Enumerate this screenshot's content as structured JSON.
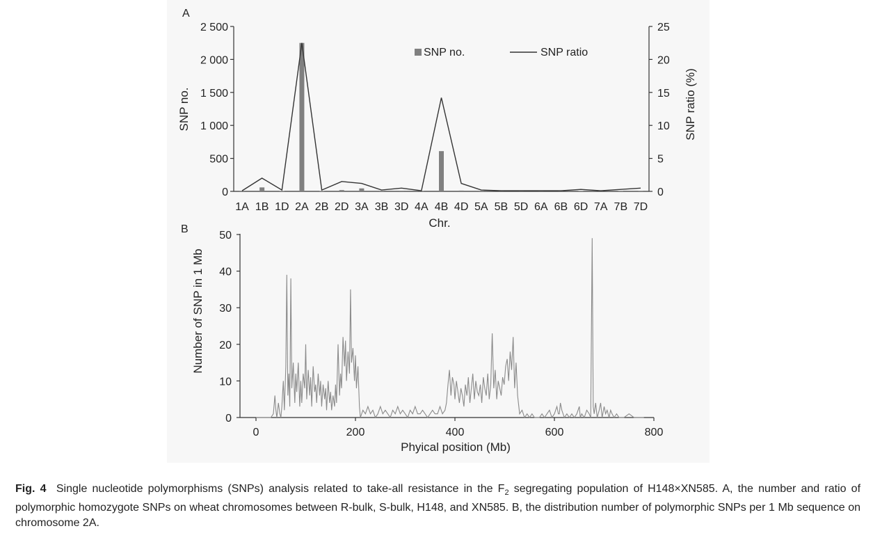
{
  "chart_data": [
    {
      "type": "bar+line",
      "panel": "A",
      "xlabel": "Chr.",
      "ylabel": "SNP no.",
      "y2label": "SNP ratio (%)",
      "ylim": [
        0,
        2500
      ],
      "y2lim": [
        0,
        25
      ],
      "yticks": [
        "0",
        "500",
        "1 000",
        "1 500",
        "2 000",
        "2 500"
      ],
      "y2ticks": [
        "0",
        "5",
        "10",
        "15",
        "20",
        "25"
      ],
      "categories": [
        "1A",
        "1B",
        "1D",
        "2A",
        "2B",
        "2D",
        "3A",
        "3B",
        "3D",
        "4A",
        "4B",
        "4D",
        "5A",
        "5B",
        "5D",
        "6A",
        "6B",
        "6D",
        "7A",
        "7B",
        "7D"
      ],
      "series": [
        {
          "name": "SNP no.",
          "kind": "bar",
          "values": [
            3,
            60,
            5,
            2250,
            5,
            20,
            45,
            8,
            10,
            4,
            610,
            12,
            3,
            2,
            2,
            2,
            3,
            5,
            3,
            6,
            8
          ]
        },
        {
          "name": "SNP ratio",
          "kind": "line",
          "values": [
            0.1,
            2.0,
            0.2,
            22.5,
            0.2,
            1.5,
            1.2,
            0.2,
            0.5,
            0.1,
            14.2,
            1.2,
            0.2,
            0.1,
            0.1,
            0.1,
            0.1,
            0.3,
            0.1,
            0.3,
            0.5
          ]
        }
      ],
      "legend": "top-right"
    },
    {
      "type": "line",
      "panel": "B",
      "xlabel": "Phyical position (Mb)",
      "ylabel": "Number of SNP in 1 Mb",
      "xlim": [
        0,
        800
      ],
      "ylim": [
        0,
        50
      ],
      "xticks": [
        0,
        200,
        400,
        600,
        800
      ],
      "yticks": [
        0,
        10,
        20,
        30,
        40,
        50
      ],
      "x": [
        0,
        30,
        35,
        38,
        40,
        42,
        45,
        48,
        50,
        52,
        55,
        57,
        60,
        62,
        64,
        66,
        68,
        70,
        72,
        75,
        78,
        80,
        82,
        85,
        88,
        90,
        92,
        95,
        98,
        100,
        102,
        105,
        108,
        110,
        112,
        115,
        118,
        120,
        122,
        125,
        128,
        130,
        132,
        135,
        138,
        140,
        142,
        145,
        148,
        150,
        152,
        155,
        158,
        160,
        162,
        165,
        168,
        170,
        172,
        175,
        178,
        180,
        182,
        185,
        188,
        190,
        192,
        195,
        198,
        200,
        202,
        205,
        208,
        210,
        215,
        220,
        225,
        230,
        235,
        240,
        245,
        250,
        255,
        260,
        265,
        270,
        275,
        280,
        285,
        290,
        295,
        300,
        305,
        310,
        315,
        320,
        325,
        330,
        335,
        340,
        345,
        350,
        355,
        360,
        365,
        370,
        375,
        380,
        383,
        386,
        389,
        392,
        395,
        398,
        400,
        403,
        406,
        409,
        412,
        415,
        418,
        421,
        424,
        427,
        430,
        433,
        436,
        439,
        442,
        445,
        448,
        451,
        454,
        457,
        460,
        463,
        466,
        469,
        472,
        475,
        478,
        481,
        484,
        487,
        490,
        493,
        496,
        499,
        502,
        505,
        508,
        511,
        514,
        517,
        520,
        523,
        526,
        530,
        535,
        540,
        545,
        550,
        555,
        560,
        570,
        575,
        580,
        585,
        590,
        595,
        600,
        605,
        608,
        610,
        612,
        615,
        620,
        625,
        630,
        635,
        640,
        645,
        650,
        652,
        655,
        660,
        665,
        670,
        673,
        676,
        678,
        680,
        683,
        686,
        690,
        693,
        696,
        700,
        703,
        706,
        710,
        713,
        716,
        720,
        725,
        730,
        740,
        750,
        760,
        770,
        780
      ],
      "y": [
        0,
        0,
        1,
        6,
        2,
        0,
        4,
        1,
        0,
        3,
        10,
        2,
        14,
        39,
        6,
        12,
        3,
        38,
        8,
        15,
        4,
        12,
        7,
        15,
        3,
        10,
        4,
        12,
        8,
        20,
        5,
        13,
        6,
        11,
        3,
        14,
        7,
        9,
        4,
        12,
        6,
        10,
        3,
        9,
        5,
        8,
        2,
        10,
        4,
        7,
        2,
        6,
        3,
        9,
        4,
        20,
        6,
        12,
        8,
        22,
        14,
        21,
        10,
        18,
        12,
        35,
        15,
        19,
        10,
        17,
        8,
        14,
        3,
        0,
        2,
        1,
        3,
        1,
        2,
        0,
        1,
        3,
        1,
        2,
        1,
        0,
        2,
        1,
        3,
        1,
        2,
        1,
        0,
        2,
        1,
        3,
        1,
        1,
        2,
        1,
        0,
        1,
        2,
        1,
        1,
        3,
        1,
        2,
        4,
        9,
        13,
        6,
        11,
        9,
        5,
        10,
        7,
        4,
        8,
        6,
        3,
        9,
        6,
        11,
        4,
        8,
        12,
        5,
        10,
        7,
        6,
        9,
        4,
        11,
        8,
        6,
        12,
        5,
        9,
        23,
        8,
        13,
        5,
        10,
        8,
        6,
        11,
        9,
        14,
        16,
        10,
        18,
        13,
        22,
        8,
        15,
        6,
        1,
        2,
        0,
        1,
        0,
        1,
        0,
        0,
        1,
        0,
        1,
        2,
        0,
        1,
        3,
        1,
        1,
        4,
        2,
        0,
        1,
        0,
        1,
        0,
        1,
        3,
        0,
        1,
        0,
        2,
        1,
        0,
        49,
        3,
        1,
        4,
        0,
        2,
        4,
        0,
        3,
        1,
        2,
        0,
        2,
        1,
        0,
        1,
        0,
        0,
        1,
        0,
        0,
        0
      ]
    }
  ],
  "panel_labels": {
    "a": "A",
    "b": "B"
  },
  "legend": {
    "bar": "SNP no.",
    "line": "SNP ratio"
  },
  "caption": {
    "prefix": "Fig. 4",
    "text_before_sub": "Single nucleotide polymorphisms (SNPs) analysis related to take-all resistance in the F",
    "sub": "2",
    "text_after_sub": " segregating population of H148×XN585.  A, the number and ratio of polymorphic homozygote SNPs on wheat chromosomes between R-bulk, S-bulk, H148, and XN585.  B, the distribution number of polymorphic SNPs per 1 Mb sequence on chromosome 2A."
  },
  "colors": {
    "bar": "#808080",
    "lineA": "#333333",
    "lineB": "#8a8a8a",
    "axis": "#333333"
  }
}
